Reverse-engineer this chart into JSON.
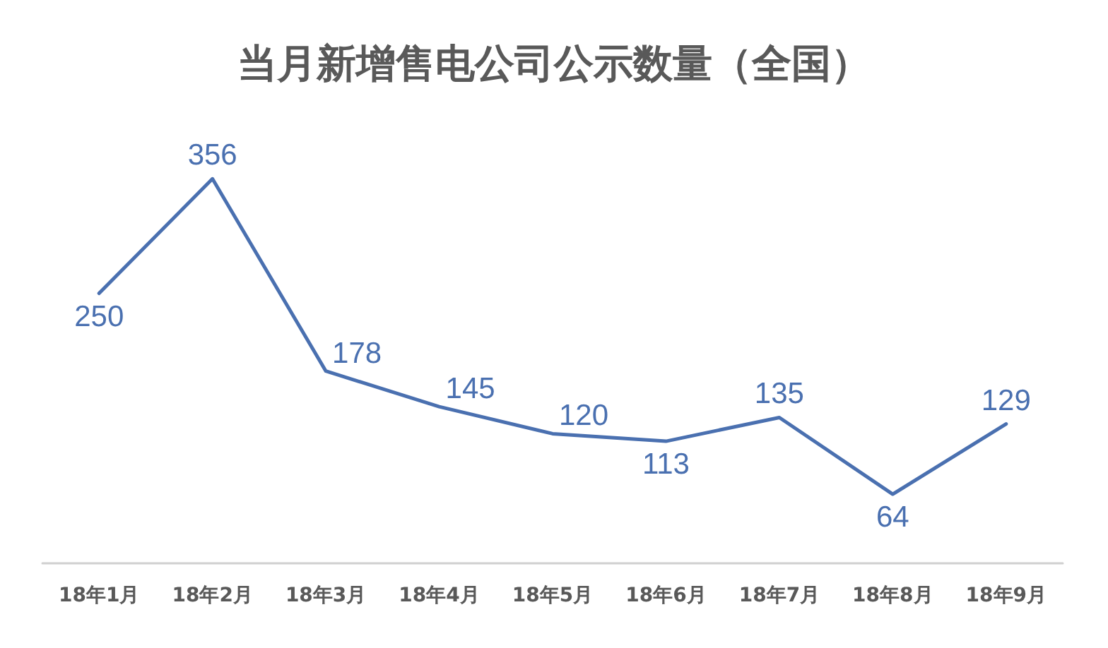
{
  "chart_data": {
    "type": "line",
    "title": "当月新增售电公司公示数量（全国）",
    "categories": [
      "18年1月",
      "18年2月",
      "18年3月",
      "18年4月",
      "18年5月",
      "18年6月",
      "18年7月",
      "18年8月",
      "18年9月"
    ],
    "series": [
      {
        "color": "#4a70b0",
        "values": [
          250,
          356,
          178,
          145,
          120,
          113,
          135,
          64,
          129
        ]
      }
    ],
    "data_labels": true,
    "marker": "none",
    "line_style": "solid",
    "grid": false,
    "tick_labels": "x"
  }
}
